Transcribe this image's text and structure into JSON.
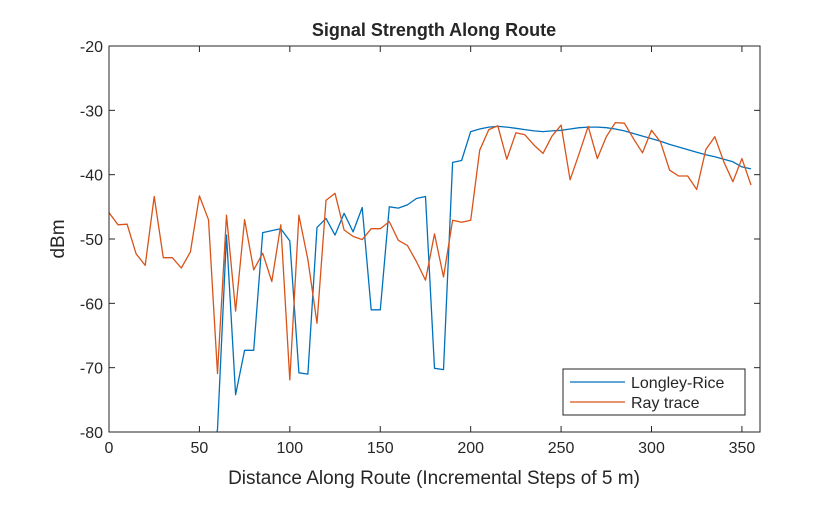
{
  "chart_data": {
    "type": "line",
    "title": "Signal Strength Along Route",
    "xlabel": "Distance Along Route (Incremental Steps of 5 m)",
    "ylabel": "dBm",
    "xlim": [
      0,
      360
    ],
    "ylim": [
      -80,
      -20
    ],
    "xticks": [
      0,
      50,
      100,
      150,
      200,
      250,
      300,
      350
    ],
    "yticks": [
      -80,
      -70,
      -60,
      -50,
      -40,
      -30,
      -20
    ],
    "grid": false,
    "legend_position": "bottom-right",
    "x": [
      0,
      5,
      10,
      15,
      20,
      25,
      30,
      35,
      40,
      45,
      50,
      55,
      60,
      65,
      70,
      75,
      80,
      85,
      90,
      95,
      100,
      105,
      110,
      115,
      120,
      125,
      130,
      135,
      140,
      145,
      150,
      155,
      160,
      165,
      170,
      175,
      180,
      185,
      190,
      195,
      200,
      205,
      210,
      215,
      220,
      225,
      230,
      235,
      240,
      245,
      250,
      255,
      260,
      265,
      270,
      275,
      280,
      285,
      290,
      295,
      300,
      305,
      310,
      315,
      320,
      325,
      330,
      335,
      340,
      345,
      350,
      355
    ],
    "series": [
      {
        "name": "Longley-Rice",
        "color": "#0072BD",
        "values": [
          null,
          null,
          null,
          null,
          null,
          null,
          null,
          null,
          null,
          null,
          null,
          null,
          -79.6,
          -49.4,
          -74.2,
          -67.3,
          -67.3,
          -49.0,
          -48.7,
          -48.4,
          -50.3,
          -70.8,
          -71.0,
          -48.2,
          -46.8,
          -49.4,
          -46.0,
          -48.9,
          -45.1,
          -61.0,
          -61.0,
          -45.0,
          -45.2,
          -44.7,
          -43.7,
          -43.4,
          -70.1,
          -70.3,
          -38.1,
          -37.8,
          -33.3,
          -32.9,
          -32.6,
          -32.5,
          -32.6,
          -32.8,
          -33.0,
          -33.2,
          -33.3,
          -33.2,
          -33.1,
          -32.9,
          -32.7,
          -32.6,
          -32.6,
          -32.7,
          -32.9,
          -33.2,
          -33.6,
          -34.0,
          -34.4,
          -34.8,
          -35.3,
          -35.7,
          -36.1,
          -36.5,
          -36.9,
          -37.2,
          -37.6,
          -38.0,
          -38.8,
          -39.1
        ]
      },
      {
        "name": "Ray trace",
        "color": "#D95319",
        "values": [
          -45.9,
          -47.8,
          -47.7,
          -52.3,
          -54.1,
          -43.4,
          -52.9,
          -52.9,
          -54.5,
          -52.0,
          -43.3,
          -47.0,
          -70.9,
          -46.3,
          -61.2,
          -47.0,
          -54.8,
          -52.2,
          -56.6,
          -47.8,
          -71.9,
          -46.3,
          -53.2,
          -63.1,
          -44.0,
          -42.9,
          -48.6,
          -49.6,
          -50.1,
          -48.4,
          -48.4,
          -47.3,
          -50.2,
          -51.0,
          -53.5,
          -56.4,
          -49.2,
          -55.9,
          -47.1,
          -47.4,
          -47.1,
          -36.2,
          -33.0,
          -32.4,
          -37.6,
          -33.5,
          -33.8,
          -35.4,
          -36.7,
          -34.0,
          -32.3,
          -40.8,
          -36.7,
          -32.5,
          -37.5,
          -34.1,
          -31.9,
          -32.0,
          -34.4,
          -36.6,
          -33.1,
          -34.9,
          -39.3,
          -40.2,
          -40.2,
          -42.3,
          -36.1,
          -34.1,
          -38.0,
          -41.1,
          -37.5,
          -41.6
        ]
      }
    ]
  }
}
